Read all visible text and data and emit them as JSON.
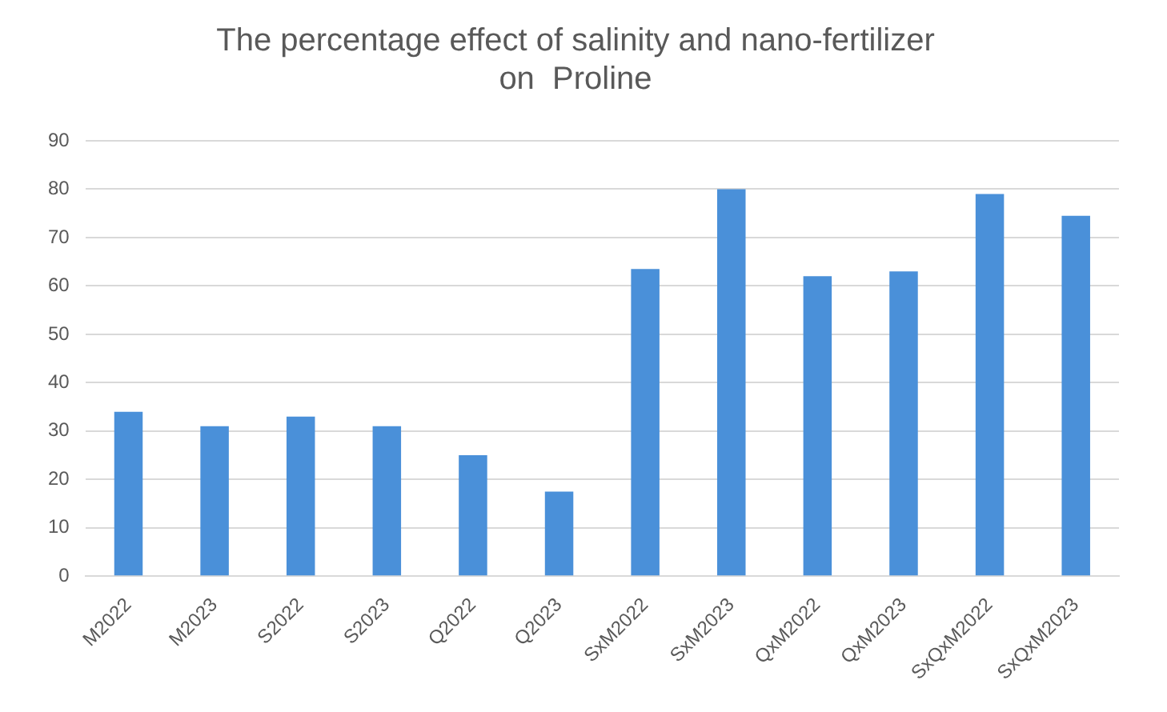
{
  "chart_data": {
    "type": "bar",
    "title": "The percentage effect of salinity and nano-fertilizer on  Proline",
    "categories": [
      "M2022",
      "M2023",
      "S2022",
      "S2023",
      "Q2022",
      "Q2023",
      "SxM2022",
      "SxM2023",
      "QxM2022",
      "QxM2023",
      "SxQxM2022",
      "SxQxM2023"
    ],
    "values": [
      34,
      31,
      33,
      31,
      25,
      17.5,
      63.5,
      80,
      62,
      63,
      79,
      74.5
    ],
    "color": "#4a90d9",
    "ylim": [
      0,
      90
    ],
    "yticks": [
      0,
      10,
      20,
      30,
      40,
      50,
      60,
      70,
      80,
      90
    ],
    "grid": "y"
  }
}
